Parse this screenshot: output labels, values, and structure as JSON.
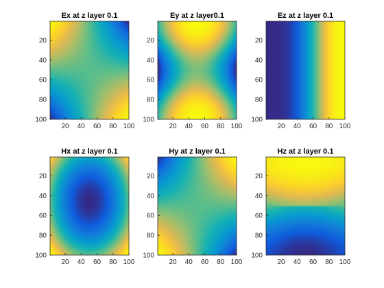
{
  "figure": {
    "background": "#ffffff",
    "colormap": "parula"
  },
  "chart_data": [
    {
      "type": "heatmap",
      "field": "Ex",
      "title": "Ex at z layer 0.1",
      "xlim": [
        1,
        100
      ],
      "ylim": [
        1,
        100
      ],
      "xticks": [
        20,
        40,
        60,
        80,
        100
      ],
      "yticks": [
        20,
        40,
        60,
        80,
        100
      ],
      "y_direction": "reverse",
      "colorbar": false
    },
    {
      "type": "heatmap",
      "field": "Ey",
      "title": "Ey at z layer0.1",
      "xlim": [
        1,
        100
      ],
      "ylim": [
        1,
        100
      ],
      "xticks": [
        20,
        40,
        60,
        80,
        100
      ],
      "yticks": [
        20,
        40,
        60,
        80,
        100
      ],
      "y_direction": "reverse",
      "colorbar": false
    },
    {
      "type": "heatmap",
      "field": "Ez",
      "title": "Ez at z layer 0.1",
      "xlim": [
        1,
        100
      ],
      "ylim": [
        1,
        100
      ],
      "xticks": [
        20,
        40,
        60,
        80,
        100
      ],
      "yticks": [
        20,
        40,
        60,
        80,
        100
      ],
      "y_direction": "reverse",
      "colorbar": false
    },
    {
      "type": "heatmap",
      "field": "Hx",
      "title": "Hx at z layer 0.1",
      "xlim": [
        1,
        100
      ],
      "ylim": [
        1,
        100
      ],
      "xticks": [
        20,
        40,
        60,
        80,
        100
      ],
      "yticks": [
        20,
        40,
        60,
        80,
        100
      ],
      "y_direction": "reverse",
      "colorbar": false
    },
    {
      "type": "heatmap",
      "field": "Hy",
      "title": "Hy at z layer 0.1",
      "xlim": [
        1,
        100
      ],
      "ylim": [
        1,
        100
      ],
      "xticks": [
        20,
        40,
        60,
        80,
        100
      ],
      "yticks": [
        20,
        40,
        60,
        80,
        100
      ],
      "y_direction": "reverse",
      "colorbar": false
    },
    {
      "type": "heatmap",
      "field": "Hz",
      "title": "Hz at z layer 0.1",
      "xlim": [
        1,
        100
      ],
      "ylim": [
        1,
        100
      ],
      "xticks": [
        20,
        40,
        60,
        80,
        100
      ],
      "yticks": [
        20,
        40,
        60,
        80,
        100
      ],
      "y_direction": "reverse",
      "colorbar": false
    }
  ]
}
